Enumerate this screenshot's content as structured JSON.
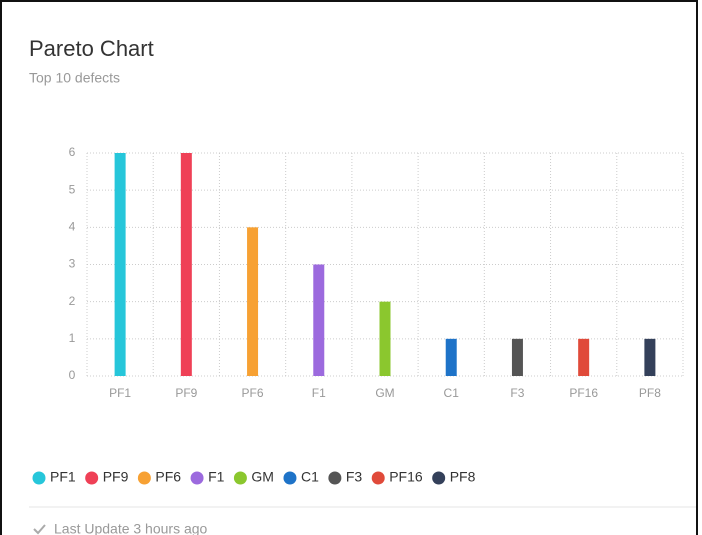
{
  "header": {
    "title": "Pareto Chart",
    "subtitle": "Top 10 defects"
  },
  "chart_data": {
    "type": "bar",
    "categories": [
      "PF1",
      "PF9",
      "PF6",
      "F1",
      "GM",
      "C1",
      "F3",
      "PF16",
      "PF8"
    ],
    "values": [
      6,
      6,
      4,
      3,
      2,
      1,
      1,
      1,
      1
    ],
    "colors": [
      "#26c6da",
      "#ef4056",
      "#f7a133",
      "#9c6ade",
      "#8bc72e",
      "#1e73c8",
      "#555555",
      "#e04a3a",
      "#34405a"
    ],
    "ylim": [
      0,
      6
    ],
    "yticks": [
      0,
      1,
      2,
      3,
      4,
      5,
      6
    ],
    "grid": true,
    "legend": "bottom"
  },
  "footer": "Last Update 3 hours ago"
}
